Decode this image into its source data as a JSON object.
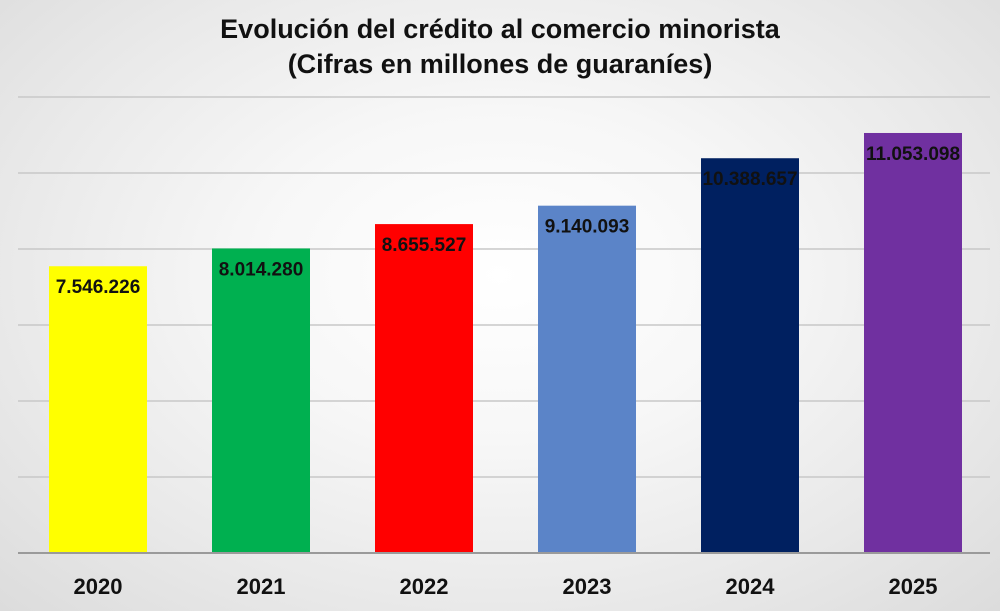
{
  "chart_data": {
    "type": "bar",
    "title": "Evolución del crédito al comercio minorista",
    "subtitle": "(Cifras en millones de guaraníes)",
    "categories": [
      "2020",
      "2021",
      "2022",
      "2023",
      "2024",
      "2025"
    ],
    "values": [
      7546226,
      8014280,
      8655527,
      9140093,
      10388657,
      11053098
    ],
    "data_labels": [
      "7.546.226",
      "8.014.280",
      "8.655.527",
      "9.140.093",
      "10.388.657",
      "11.053.098"
    ],
    "colors": [
      "#ffff00",
      "#00b050",
      "#ff0000",
      "#5b84c8",
      "#002060",
      "#7030a0"
    ],
    "xlabel": "",
    "ylabel": "",
    "ylim": [
      0,
      14000000
    ],
    "grid": true,
    "legend": "none"
  }
}
